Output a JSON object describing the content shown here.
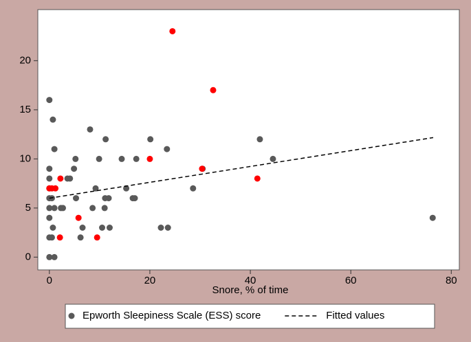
{
  "chart_data": {
    "type": "scatter",
    "x_label": "Snore, % of time",
    "xlim": [
      -2.3,
      81.6
    ],
    "ylim": [
      -1.3,
      25.2
    ],
    "xticks": [
      0,
      20,
      40,
      60,
      80
    ],
    "yticks": [
      0,
      5,
      10,
      15,
      20
    ],
    "grid": false,
    "series": [
      {
        "name": "Epworth Sleepiness Scale (ESS) score",
        "color": "#595959",
        "x": [
          0,
          0.7,
          1,
          0,
          0,
          0,
          0,
          0.5,
          0,
          1,
          0,
          0.7,
          0,
          0.5,
          0,
          1,
          2.3,
          2.7,
          3.6,
          4.1,
          4.9,
          5.2,
          5.3,
          6.2,
          6.6,
          8.1,
          8.6,
          9.2,
          9.9,
          10.5,
          11,
          11.1,
          11.8,
          11.2,
          12,
          14.4,
          15.3,
          16.6,
          17,
          17.3,
          20.1,
          22.2,
          23.4,
          23.6,
          28.6,
          30.5,
          41.9,
          44.5,
          76.3
        ],
        "values": [
          16,
          14,
          11,
          9,
          8,
          7,
          6,
          6,
          5,
          5,
          4,
          3,
          2,
          2,
          0,
          0,
          5,
          5,
          8,
          8,
          9,
          10,
          6,
          2,
          3,
          13,
          5,
          7,
          10,
          3,
          5,
          6,
          6,
          12,
          3,
          10,
          7,
          6,
          6,
          10,
          12,
          3,
          11,
          3,
          7,
          9,
          12,
          10,
          4
        ]
      },
      {
        "color": "#ff0000",
        "x": [
          0,
          0.5,
          1.2,
          2.2,
          2.1,
          5.8,
          9.5,
          20,
          24.5,
          30.4,
          32.6,
          41.4
        ],
        "values": [
          7,
          7,
          7,
          8,
          2,
          4,
          2,
          10,
          23,
          9,
          17,
          8
        ]
      },
      {
        "name": "Fitted values",
        "color": "#000000",
        "line": "dashed",
        "x": [
          0,
          76.4
        ],
        "values": [
          6.0,
          12.17
        ]
      }
    ]
  }
}
